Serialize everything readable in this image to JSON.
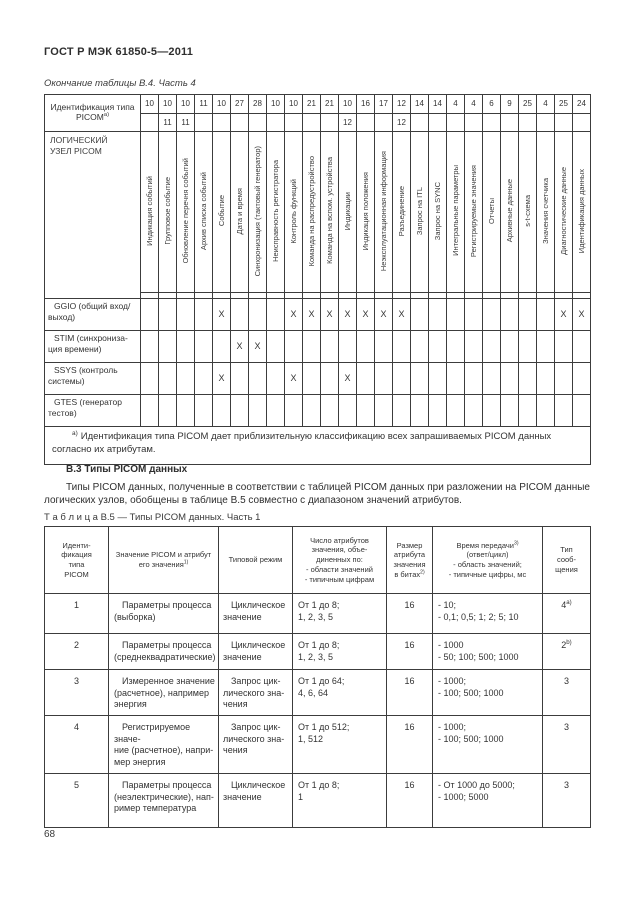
{
  "page": {
    "header_title": "ГОСТ Р МЭК 61850-5—2011",
    "page_number": "68"
  },
  "table_b4": {
    "caption": "Окончание таблицы В.4. Часть 4",
    "corner_header": "Идентификация типа PICOM",
    "corner_header_sup": "а)",
    "row_header_title": "ЛОГИЧЕСКИЙ\nУЗЕЛ PICOM",
    "mark_symbol": "X",
    "columns": [
      {
        "id": "10",
        "id2": "",
        "label": "Индикация событий"
      },
      {
        "id": "10",
        "id2": "11",
        "label": "Групповое событие"
      },
      {
        "id": "10",
        "id2": "11",
        "label": "Обновление перечня событий"
      },
      {
        "id": "11",
        "id2": "",
        "label": "Архив списка событий"
      },
      {
        "id": "10",
        "id2": "",
        "label": "Событие"
      },
      {
        "id": "27",
        "id2": "",
        "label": "Дата и время"
      },
      {
        "id": "28",
        "id2": "",
        "label": "Синхронизация (тактовый генератор)"
      },
      {
        "id": "10",
        "id2": "",
        "label": "Неисправность регистратора"
      },
      {
        "id": "10",
        "id2": "",
        "label": "Контроль функций"
      },
      {
        "id": "21",
        "id2": "",
        "label": "Команда на распредустройство"
      },
      {
        "id": "21",
        "id2": "",
        "label": "Команда на вспом. устройства"
      },
      {
        "id": "10",
        "id2": "12",
        "label": "Индикации"
      },
      {
        "id": "16",
        "id2": "",
        "label": "Индикация положения"
      },
      {
        "id": "17",
        "id2": "",
        "label": "Неэксплуатационная информация"
      },
      {
        "id": "12",
        "id2": "12",
        "label": "Разъединение"
      },
      {
        "id": "14",
        "id2": "",
        "label": "Запрос на ITL"
      },
      {
        "id": "14",
        "id2": "",
        "label": "Запрос на SYNC"
      },
      {
        "id": "4",
        "id2": "",
        "label": "Интегральные параметры"
      },
      {
        "id": "4",
        "id2": "",
        "label": "Регистрируемые значения"
      },
      {
        "id": "6",
        "id2": "",
        "label": "Отчеты"
      },
      {
        "id": "9",
        "id2": "",
        "label": "Архивные данные"
      },
      {
        "id": "25",
        "id2": "",
        "label": "s-t-схема"
      },
      {
        "id": "4",
        "id2": "",
        "label": "Значения счетчика"
      },
      {
        "id": "25",
        "id2": "",
        "label": "Диагностические данные"
      },
      {
        "id": "24",
        "id2": "",
        "label": "Идентификация данных"
      }
    ],
    "rows": [
      {
        "label": "GGIO (общий вход/\nвыход)",
        "marks": [
          5,
          9,
          10,
          11,
          12,
          13,
          14,
          15,
          24,
          25
        ]
      },
      {
        "label": "STIM (синхрониза-\nция времени)",
        "marks": [
          6,
          7
        ]
      },
      {
        "label": "SSYS (контроль\nсистемы)",
        "marks": [
          5,
          9,
          12
        ]
      },
      {
        "label": "GTES (генератор\nтестов)",
        "marks": []
      }
    ],
    "footnote_sup": "а)",
    "footnote": "Идентификация типа PICOM дает приблизительную классификацию всех запрашиваемых PICOM данных согласно их атрибутам."
  },
  "section": {
    "heading": "В.3 Типы PICOM данных",
    "paragraph": "Типы PICOM данных, полученные в соответствии с таблицей PICOM данных при разложении на PICOM данные логических узлов, обобщены в таблице В.5 совместно с диапазоном значений атрибутов."
  },
  "table_b5": {
    "caption": "Т а б л и ц а  В.5 — Типы PICOM данных. Часть 1",
    "headers": [
      {
        "text": "Иденти-\nфикация\nтипа\nPICOM"
      },
      {
        "text": "Значение PICOM и атрибут\nего значения",
        "sup": "1)"
      },
      {
        "text": "Типовой режим"
      },
      {
        "text": "Число атрибутов\nзначения, объе-\nдиненных по:\n- области значений\n- типичным цифрам"
      },
      {
        "text": "Размер\nатрибута\nзначения\nв битах",
        "sup": "2)"
      },
      {
        "text": "Время передачи",
        "sup": "3)",
        "text2": "\n(ответ/цикл)\n- область значений;\n- типичные цифры, мс"
      },
      {
        "text": "Тип\nсооб-\nщения"
      }
    ],
    "rows": [
      {
        "id": "1",
        "value": "Параметры процесса\n(выборка)",
        "mode": "Циклическое\nзначение",
        "attrs": "От 1 до 8;\n1, 2, 3, 5",
        "size": "16",
        "time": "- 10;\n- 0,1; 0,5; 1; 2; 5; 10",
        "type": "4",
        "type_sup": "а)"
      },
      {
        "id": "2",
        "value": "Параметры процесса\n(среднеквадратические)",
        "mode": "Циклическое\nзначение",
        "attrs": "От 1 до 8;\n1, 2, 3, 5",
        "size": "16",
        "time": "- 1000\n- 50; 100; 500; 1000",
        "type": "2",
        "type_sup": "b)"
      },
      {
        "id": "3",
        "value": "Измеренное значение\n(расчетное), например\nэнергия",
        "mode": "Запрос цик-\nлического зна-\nчения",
        "attrs": "От 1 до 64;\n4, 6, 64",
        "size": "16",
        "time": "- 1000;\n- 100; 500; 1000",
        "type": "3",
        "type_sup": ""
      },
      {
        "id": "4",
        "value": "Регистрируемое значе-\nние (расчетное), напри-\nмер энергия",
        "mode": "Запрос цик-\nлического зна-\nчения",
        "attrs": "От 1 до 512;\n1, 512",
        "size": "16",
        "time": "- 1000;\n- 100; 500; 1000",
        "type": "3",
        "type_sup": ""
      },
      {
        "id": "5",
        "value": "Параметры процесса\n(неэлектрические), нап-\nример температура",
        "mode": "Циклическое\nзначение",
        "attrs": "От 1 до 8;\n1",
        "size": "16",
        "time": "- От 1000 до 5000;\n- 1000; 5000",
        "type": "3",
        "type_sup": ""
      }
    ]
  }
}
